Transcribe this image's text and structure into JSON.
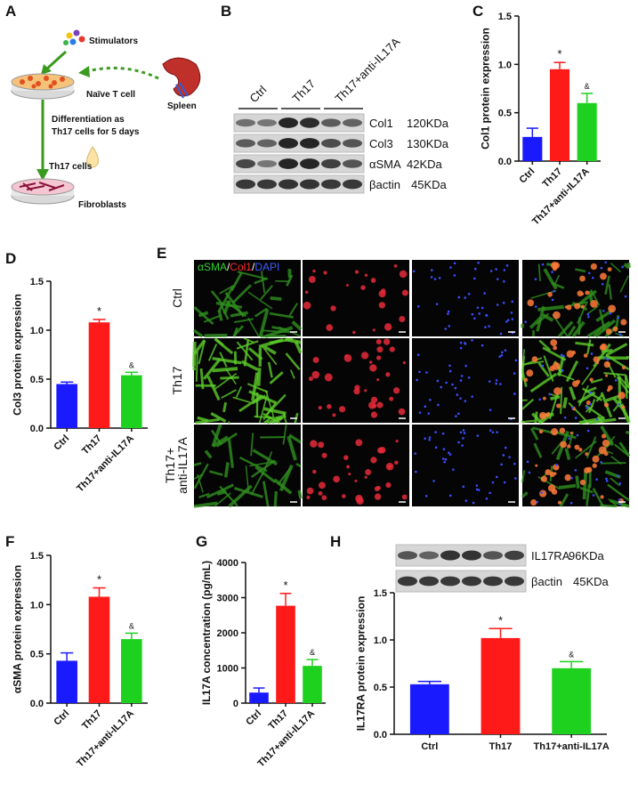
{
  "panel_labels": [
    "A",
    "B",
    "C",
    "D",
    "E",
    "F",
    "G",
    "H"
  ],
  "diagram": {
    "stimulators": "Stimulators",
    "naive_t_cell": "Naïve T cell",
    "spleen": "Spleen",
    "differentiation": [
      "Differentiation as",
      "Th17 cells for 5 days"
    ],
    "th17_cells": "Th17 cells",
    "fibroblasts": "Fibroblasts"
  },
  "blot": {
    "lanes": [
      "Ctrl",
      "Th17",
      "Th17+anti-IL17A"
    ],
    "bands": [
      {
        "name": "Col1",
        "size": "120KDa"
      },
      {
        "name": "Col3",
        "size": "130KDa"
      },
      {
        "name": "αSMA",
        "size": "42KDa"
      },
      {
        "name": "βactin",
        "size": "45KDa"
      }
    ]
  },
  "fluorescence": {
    "stain_label": [
      "αSMA",
      "/",
      "Col1",
      "/",
      "DAPI"
    ],
    "rows": [
      [
        "Ctrl"
      ],
      [
        "Th17"
      ],
      [
        "Th17+",
        "anti-IL17A"
      ]
    ]
  },
  "blot_h": {
    "bands": [
      {
        "name": "IL17RA",
        "size": "96KDa"
      },
      {
        "name": "βactin",
        "size": "45KDa"
      }
    ]
  },
  "chart_data": [
    {
      "type": "bar",
      "y_label": "Col1 protein expression",
      "categories": [
        "Ctrl",
        "Th17",
        "Th17+anti-IL17A"
      ],
      "values": [
        0.25,
        0.95,
        0.6
      ],
      "errors": [
        0.09,
        0.07,
        0.1
      ],
      "colors": [
        "#1a1aff",
        "#ff1a1a",
        "#1fd11f"
      ],
      "ylim": [
        0,
        1.5
      ],
      "yticks": [
        {
          "value": 0,
          "label": "0.0"
        },
        {
          "value": 0.5,
          "label": "0.5"
        },
        {
          "value": 1,
          "label": "1.0"
        },
        {
          "value": 1.5,
          "label": "1.5"
        }
      ],
      "annotations": [
        {
          "category": "Th17",
          "text": "*"
        },
        {
          "category": "Th17+anti-IL17A",
          "text": "&"
        }
      ]
    },
    {
      "type": "bar",
      "y_label": "Col3 protein expression",
      "categories": [
        "Ctrl",
        "Th17",
        "Th17+anti-IL17A"
      ],
      "values": [
        0.45,
        1.08,
        0.54
      ],
      "errors": [
        0.02,
        0.03,
        0.03
      ],
      "colors": [
        "#1a1aff",
        "#ff1a1a",
        "#1fd11f"
      ],
      "ylim": [
        0,
        1.5
      ],
      "yticks": [
        {
          "value": 0,
          "label": "0.0"
        },
        {
          "value": 0.5,
          "label": "0.5"
        },
        {
          "value": 1,
          "label": "1.0"
        },
        {
          "value": 1.5,
          "label": "1.5"
        }
      ],
      "annotations": [
        {
          "category": "Th17",
          "text": "*"
        },
        {
          "category": "Th17+anti-IL17A",
          "text": "&"
        }
      ]
    },
    {
      "type": "bar",
      "y_label": "αSMA protein expression",
      "categories": [
        "Ctrl",
        "Th17",
        "Th17+anti-IL17A"
      ],
      "values": [
        0.43,
        1.08,
        0.65
      ],
      "errors": [
        0.08,
        0.09,
        0.06
      ],
      "colors": [
        "#1a1aff",
        "#ff1a1a",
        "#1fd11f"
      ],
      "ylim": [
        0,
        1.5
      ],
      "yticks": [
        {
          "value": 0,
          "label": "0.0"
        },
        {
          "value": 0.5,
          "label": "0.5"
        },
        {
          "value": 1,
          "label": "1.0"
        },
        {
          "value": 1.5,
          "label": "1.5"
        }
      ],
      "annotations": [
        {
          "category": "Th17",
          "text": "*"
        },
        {
          "category": "Th17+anti-IL17A",
          "text": "&"
        }
      ]
    },
    {
      "type": "bar",
      "y_label": "IL17A concentration (pg/mL)",
      "categories": [
        "Ctrl",
        "Th17",
        "Th17+anti-IL17A"
      ],
      "values": [
        300,
        2770,
        1060
      ],
      "errors": [
        130,
        350,
        180
      ],
      "colors": [
        "#1a1aff",
        "#ff1a1a",
        "#1fd11f"
      ],
      "ylim": [
        0,
        4000
      ],
      "yticks": [
        0,
        1000,
        2000,
        3000,
        4000
      ],
      "annotations": [
        {
          "category": "Th17",
          "text": "*"
        },
        {
          "category": "Th17+anti-IL17A",
          "text": "&"
        }
      ]
    },
    {
      "type": "bar",
      "y_label": "IL17RA protein expression",
      "categories": [
        "Ctrl",
        "Th17",
        "Th17+anti-IL17A"
      ],
      "values": [
        0.53,
        1.02,
        0.7
      ],
      "errors": [
        0.03,
        0.1,
        0.07
      ],
      "colors": [
        "#1a1aff",
        "#ff1a1a",
        "#1fd11f"
      ],
      "ylim": [
        0,
        1.5
      ],
      "yticks": [
        {
          "value": 0,
          "label": "0.0"
        },
        {
          "value": 0.5,
          "label": "0.5"
        },
        {
          "value": 1,
          "label": "1.0"
        },
        {
          "value": 1.5,
          "label": "1.5"
        }
      ],
      "annotations": [
        {
          "category": "Th17",
          "text": "*"
        },
        {
          "category": "Th17+anti-IL17A",
          "text": "&"
        }
      ]
    }
  ]
}
